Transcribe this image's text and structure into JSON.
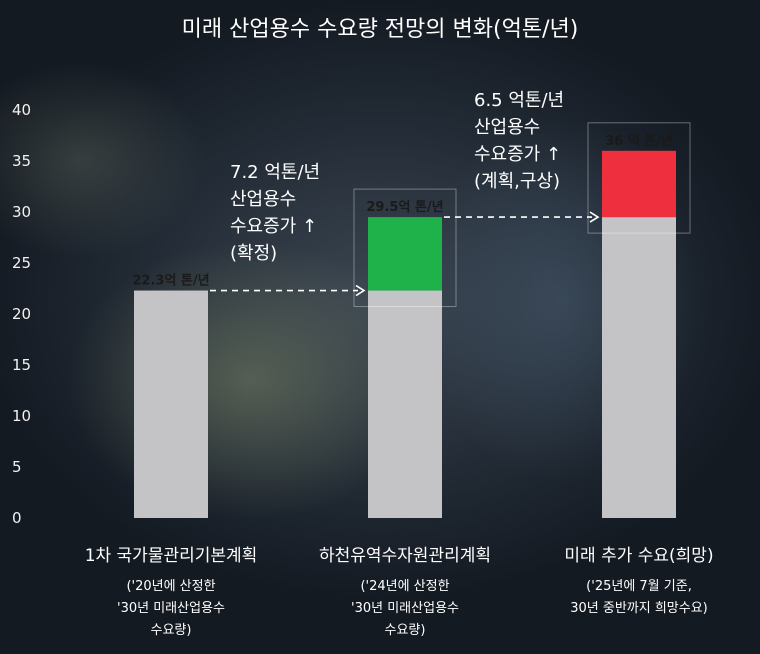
{
  "chart_data": {
    "type": "bar",
    "title": "미래 산업용수 수요량 전망의 변화(억톤/년)",
    "ylim": [
      0,
      40
    ],
    "yticks": [
      0,
      5,
      10,
      15,
      20,
      25,
      30,
      35,
      40
    ],
    "categories": [
      "1차 국가물관리기본계획",
      "하천유역수자원관리계획",
      "미래 추가 수요(희망)"
    ],
    "category_notes": [
      [
        "('20년에 산정한",
        "'30년 미래산업용수",
        "수요량)"
      ],
      [
        "('24년에 산정한",
        "'30년 미래산업용수",
        "수요량)"
      ],
      [
        "('25년에 7월 기준,",
        "30년 중반까지 희망수요)"
      ]
    ],
    "series": [
      {
        "values": [
          22.3,
          22.3,
          29.5
        ],
        "color": "#c4c4c6"
      },
      {
        "values": [
          0,
          7.2,
          6.5
        ],
        "colors": [
          "#c4c4c6",
          "#1fb14a",
          "#ee2f3d"
        ]
      }
    ],
    "totals": [
      22.3,
      29.5,
      36
    ],
    "data_labels": [
      "22.3억 톤/년",
      "29.5억 톤/년",
      "36 억 톤/년"
    ],
    "annotations": [
      {
        "lines": [
          "7.2 억톤/년",
          "산업용수",
          "수요증가 ↑",
          "(확정)"
        ]
      },
      {
        "lines": [
          "6.5 억톤/년",
          "산업용수",
          "수요증가 ↑",
          "(계획,구상)"
        ]
      }
    ]
  }
}
